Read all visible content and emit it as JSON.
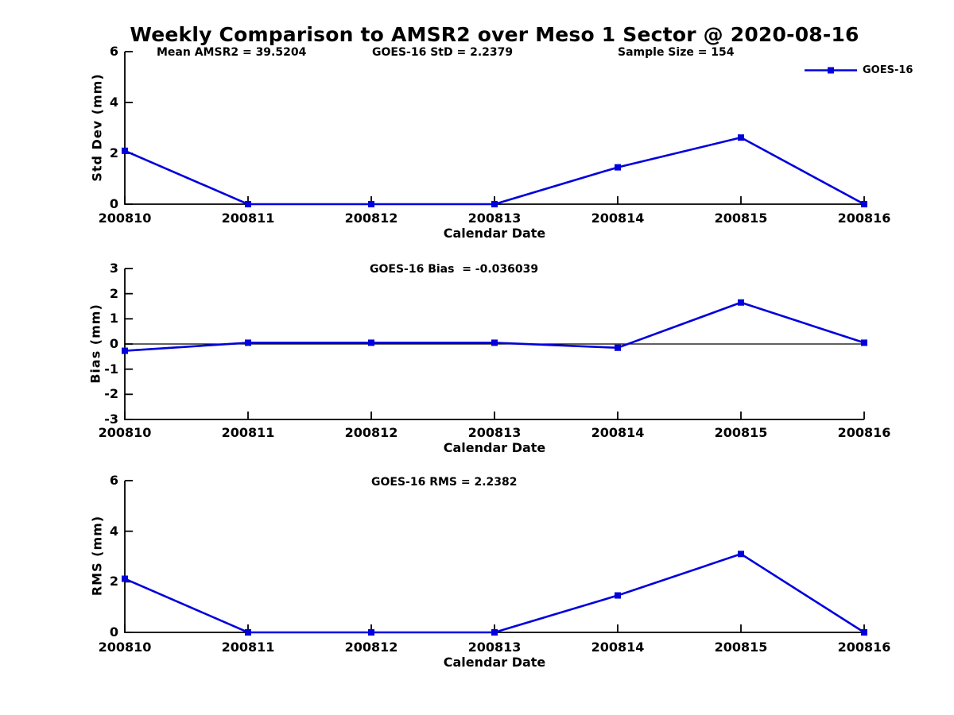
{
  "title": "Weekly Comparison to AMSR2 over Meso 1 Sector @ 2020-08-16",
  "stats": {
    "mean_amsr2": "Mean AMSR2 = 39.5204",
    "goes16_std": "GOES-16 StD = 2.2379",
    "sample_size": "Sample Size = 154"
  },
  "legend": {
    "label": "GOES-16"
  },
  "colors": {
    "series_blue": "#0000dd",
    "axis_black": "#000000",
    "background": "#ffffff"
  },
  "chart_data": [
    {
      "type": "line",
      "panel": "std_dev",
      "title": "",
      "ylabel": "Std Dev (mm)",
      "xlabel": "Calendar Date",
      "x_categories": [
        "200810",
        "200811",
        "200812",
        "200813",
        "200814",
        "200815",
        "200816"
      ],
      "series": [
        {
          "name": "GOES-16",
          "values": [
            2.1,
            0,
            0,
            0,
            1.45,
            2.62,
            0
          ]
        }
      ],
      "ylim": [
        0,
        6
      ],
      "yticks": [
        0,
        2,
        4,
        6
      ],
      "grid": false,
      "zero_line": false,
      "legend_position": "top-right-outside",
      "marker": "square"
    },
    {
      "type": "line",
      "panel": "bias",
      "title": "GOES-16 Bias  = -0.036039",
      "ylabel": "Bias (mm)",
      "xlabel": "Calendar Date",
      "x_categories": [
        "200810",
        "200811",
        "200812",
        "200813",
        "200814",
        "200815",
        "200816"
      ],
      "series": [
        {
          "name": "GOES-16",
          "values": [
            -0.27,
            0.05,
            0.05,
            0.05,
            -0.15,
            1.65,
            0.05
          ]
        }
      ],
      "ylim": [
        -3,
        3
      ],
      "yticks": [
        -3,
        -2,
        -1,
        0,
        1,
        2,
        3
      ],
      "grid": false,
      "zero_line": true,
      "marker": "square"
    },
    {
      "type": "line",
      "panel": "rms",
      "title": "GOES-16 RMS = 2.2382",
      "ylabel": "RMS (mm)",
      "xlabel": "Calendar Date",
      "x_categories": [
        "200810",
        "200811",
        "200812",
        "200813",
        "200814",
        "200815",
        "200816"
      ],
      "series": [
        {
          "name": "GOES-16",
          "values": [
            2.12,
            0,
            0,
            0,
            1.46,
            3.1,
            0
          ]
        }
      ],
      "ylim": [
        0,
        6
      ],
      "yticks": [
        0,
        2,
        4,
        6
      ],
      "grid": false,
      "zero_line": false,
      "marker": "square"
    }
  ]
}
